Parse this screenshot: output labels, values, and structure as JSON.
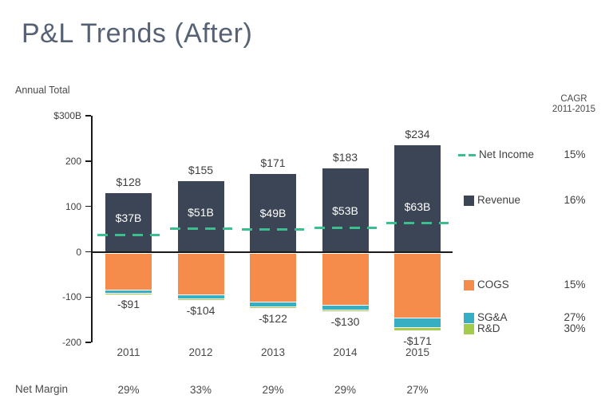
{
  "title": "P&L Trends (After)",
  "cagr_header": {
    "line1": "CAGR",
    "line2": "2011-2015"
  },
  "net_margin": {
    "label": "Net Margin",
    "values": [
      "29%",
      "33%",
      "29%",
      "29%",
      "27%"
    ]
  },
  "colors": {
    "title": "#566274",
    "text": "#3f3f3f",
    "axis": "#1a1a1a",
    "revenue": "#3b4555",
    "cogs": "#f68c4b",
    "sga": "#35afc1",
    "rd": "#a2cc49",
    "net_income": "#3cbe8e",
    "inside_label": "#ffffff"
  },
  "legend": [
    {
      "key": "net_income",
      "name": "Net Income",
      "cagr": "15%"
    },
    {
      "key": "revenue",
      "name": "Revenue",
      "cagr": "16%"
    },
    {
      "key": "cogs",
      "name": "COGS",
      "cagr": "15%"
    },
    {
      "key": "sga",
      "name": "SG&A",
      "cagr": "27%"
    },
    {
      "key": "rd",
      "name": "R&D",
      "cagr": "30%"
    }
  ],
  "chart_data": {
    "type": "bar",
    "stacked": true,
    "title": "P&L Trends (After)",
    "ylabel": "Annual Total",
    "ylim": [
      -200,
      300
    ],
    "grid": false,
    "legend_position": "right",
    "categories": [
      "2011",
      "2012",
      "2013",
      "2014",
      "2015"
    ],
    "yticks": {
      "values": [
        300,
        200,
        100,
        0,
        -100,
        -200
      ],
      "labels": [
        "$300B",
        "200",
        "100",
        "0",
        "-100",
        "-200"
      ]
    },
    "series": [
      {
        "key": "revenue",
        "name": "Revenue",
        "type": "bar",
        "values": [
          128,
          155,
          171,
          183,
          234
        ],
        "labels": [
          "$128",
          "$155",
          "$171",
          "$183",
          "$234"
        ]
      },
      {
        "key": "cogs",
        "name": "COGS",
        "type": "bar",
        "values": [
          -81,
          -93,
          -109,
          -115,
          -143
        ]
      },
      {
        "key": "sga",
        "name": "SG&A",
        "type": "bar",
        "values": [
          -8,
          -9,
          -10,
          -11,
          -22
        ]
      },
      {
        "key": "rd",
        "name": "R&D",
        "type": "bar",
        "values": [
          -2,
          -2,
          -3,
          -4,
          -6
        ]
      },
      {
        "key": "net_income",
        "name": "Net Income",
        "type": "line",
        "dashed": true,
        "values": [
          37,
          51,
          49,
          53,
          63
        ],
        "labels": [
          "$37B",
          "$51B",
          "$49B",
          "$53B",
          "$63B"
        ]
      }
    ],
    "cost_total_labels": [
      "-$91",
      "-$104",
      "-$122",
      "-$130",
      "-$171"
    ],
    "net_margin_row": [
      "29%",
      "33%",
      "29%",
      "29%",
      "27%"
    ]
  }
}
